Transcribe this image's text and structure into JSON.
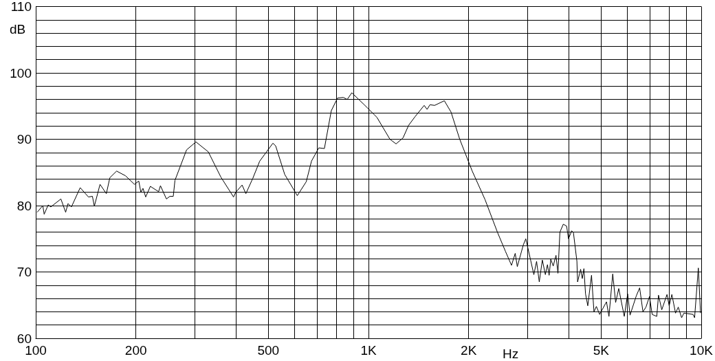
{
  "chart_data": {
    "type": "line",
    "xlabel": "Hz",
    "ylabel": "dB",
    "x": [
      101,
      105,
      106,
      109,
      111,
      119,
      123,
      125,
      128,
      136,
      144,
      148,
      150,
      156,
      163,
      167,
      175,
      186,
      198,
      204,
      207,
      210,
      214,
      221,
      234,
      237,
      247,
      253,
      259,
      262,
      284,
      303,
      330,
      360,
      393,
      399,
      417,
      428,
      449,
      471,
      516,
      526,
      560,
      611,
      650,
      674,
      709,
      737,
      773,
      807,
      840,
      863,
      891,
      971,
      1060,
      1160,
      1210,
      1270,
      1320,
      1380,
      1470,
      1500,
      1530,
      1580,
      1690,
      1770,
      1880,
      2050,
      2240,
      2440,
      2580,
      2690,
      2760,
      2800,
      2920,
      2970,
      3070,
      3140,
      3200,
      3260,
      3330,
      3400,
      3450,
      3490,
      3530,
      3590,
      3660,
      3710,
      3760,
      3850,
      3940,
      3990,
      4080,
      4130,
      4230,
      4250,
      4340,
      4390,
      4440,
      4490,
      4560,
      4680,
      4760,
      4840,
      4950,
      5190,
      5280,
      5420,
      5530,
      5650,
      5870,
      6010,
      6110,
      6380,
      6530,
      6680,
      6820,
      6990,
      7120,
      7350,
      7440,
      7610,
      7890,
      8010,
      8160,
      8370,
      8530,
      8730,
      8870,
      9450,
      9550,
      9800,
      9950
    ],
    "series": [
      {
        "color": "#000000",
        "values": [
          79.0,
          80.0,
          78.7,
          80.1,
          79.8,
          81.0,
          79.0,
          80.3,
          79.8,
          82.7,
          81.3,
          81.4,
          79.9,
          83.2,
          81.8,
          84.2,
          85.2,
          84.5,
          83.2,
          83.7,
          82.0,
          82.6,
          81.3,
          82.9,
          82.1,
          83.0,
          81.0,
          81.4,
          81.4,
          83.8,
          88.4,
          89.6,
          88.1,
          84.3,
          81.3,
          82.0,
          83.1,
          81.8,
          84.1,
          86.7,
          89.4,
          89.0,
          84.7,
          81.5,
          83.6,
          86.7,
          88.7,
          88.6,
          94.3,
          96.2,
          96.3,
          96.0,
          97.0,
          95.2,
          93.3,
          90.0,
          89.3,
          90.2,
          92.1,
          93.4,
          95.1,
          94.5,
          95.2,
          95.1,
          95.8,
          94.1,
          90.0,
          85.2,
          80.9,
          76.0,
          73.1,
          71.0,
          72.8,
          70.8,
          74.1,
          75.0,
          71.8,
          69.6,
          71.6,
          68.5,
          71.8,
          69.6,
          71.1,
          69.5,
          71.9,
          70.9,
          72.5,
          69.8,
          76.0,
          77.2,
          76.9,
          75.0,
          76.2,
          75.9,
          71.6,
          68.5,
          70.4,
          69.0,
          70.5,
          66.7,
          64.9,
          69.5,
          64.0,
          64.8,
          63.6,
          65.5,
          63.3,
          69.7,
          65.4,
          67.5,
          63.3,
          66.7,
          63.5,
          66.4,
          67.6,
          64.0,
          64.7,
          66.3,
          63.6,
          63.3,
          66.5,
          64.3,
          66.6,
          64.9,
          66.6,
          63.8,
          64.7,
          63.1,
          63.8,
          63.6,
          63.1,
          70.6,
          63.8
        ]
      }
    ],
    "log": "x",
    "xlim": [
      100,
      10000
    ],
    "xticks": [
      100,
      200,
      {
        "value": 300,
        "label": null
      },
      {
        "value": 400,
        "label": null
      },
      500,
      {
        "value": 600,
        "label": null
      },
      {
        "value": 700,
        "label": null
      },
      {
        "value": 800,
        "label": null
      },
      {
        "value": 900,
        "label": null
      },
      {
        "value": 1000,
        "label": "1K"
      },
      {
        "value": 2000,
        "label": "2K"
      },
      {
        "value": 3000,
        "label": null
      },
      {
        "value": 4000,
        "label": null
      },
      {
        "value": 5000,
        "label": "5K"
      },
      {
        "value": 6000,
        "label": null
      },
      {
        "value": 7000,
        "label": null
      },
      {
        "value": 8000,
        "label": null
      },
      {
        "value": 9000,
        "label": null
      },
      {
        "value": 10000,
        "label": "10K"
      }
    ],
    "ylim": [
      60,
      110
    ],
    "yticks": [
      60,
      {
        "value": 62,
        "label": null
      },
      {
        "value": 64,
        "label": null
      },
      {
        "value": 66,
        "label": null
      },
      {
        "value": 68,
        "label": null
      },
      70,
      {
        "value": 72,
        "label": null
      },
      {
        "value": 74,
        "label": null
      },
      {
        "value": 76,
        "label": null
      },
      {
        "value": 78,
        "label": null
      },
      80,
      {
        "value": 82,
        "label": null
      },
      {
        "value": 84,
        "label": null
      },
      {
        "value": 86,
        "label": null
      },
      {
        "value": 88,
        "label": null
      },
      90,
      {
        "value": 92,
        "label": null
      },
      {
        "value": 94,
        "label": null
      },
      {
        "value": 96,
        "label": null
      },
      {
        "value": 98,
        "label": null
      },
      100,
      {
        "value": 102,
        "label": null
      },
      {
        "value": 104,
        "label": null
      },
      {
        "value": 106,
        "label": null
      },
      {
        "value": 108,
        "label": null
      },
      110
    ],
    "grid": true,
    "marker": "none",
    "line_style": "solid"
  }
}
